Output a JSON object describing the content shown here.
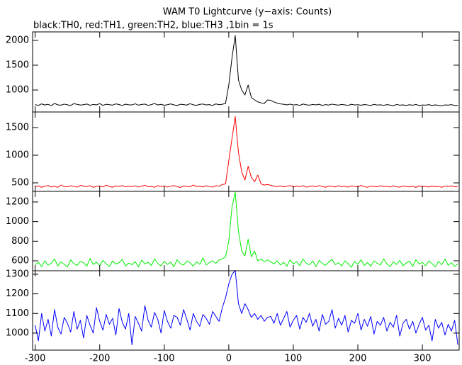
{
  "chart_data": [
    {
      "type": "line",
      "title": "WAM T0 Lightcurve (y−axis: Counts)",
      "subtitle": "black:TH0, red:TH1, green:TH2, blue:TH3 ,1bin = 1s",
      "color": "#000000",
      "xlim": [
        -304,
        357
      ],
      "ylim": [
        557,
        2171
      ],
      "yticks": [
        1000,
        1500,
        2000
      ],
      "x": [
        -300,
        -295,
        -290,
        -285,
        -280,
        -275,
        -270,
        -265,
        -260,
        -255,
        -250,
        -245,
        -240,
        -235,
        -230,
        -225,
        -220,
        -215,
        -210,
        -205,
        -200,
        -195,
        -190,
        -185,
        -180,
        -175,
        -170,
        -165,
        -160,
        -155,
        -150,
        -145,
        -140,
        -135,
        -130,
        -125,
        -120,
        -115,
        -110,
        -105,
        -100,
        -95,
        -90,
        -85,
        -80,
        -75,
        -70,
        -65,
        -60,
        -55,
        -50,
        -45,
        -40,
        -35,
        -30,
        -25,
        -20,
        -15,
        -10,
        -5,
        0,
        5,
        10,
        15,
        20,
        25,
        30,
        35,
        40,
        45,
        50,
        55,
        60,
        65,
        70,
        75,
        80,
        85,
        90,
        95,
        100,
        105,
        110,
        115,
        120,
        125,
        130,
        135,
        140,
        145,
        150,
        155,
        160,
        165,
        170,
        175,
        180,
        185,
        190,
        195,
        200,
        205,
        210,
        215,
        220,
        225,
        230,
        235,
        240,
        245,
        250,
        255,
        260,
        265,
        270,
        275,
        280,
        285,
        290,
        295,
        300,
        305,
        310,
        315,
        320,
        325,
        330,
        335,
        340,
        345,
        350,
        355
      ],
      "values": [
        705,
        690,
        720,
        698,
        712,
        685,
        730,
        700,
        695,
        715,
        702,
        688,
        725,
        710,
        697,
        704,
        718,
        692,
        708,
        700,
        726,
        690,
        712,
        703,
        695,
        720,
        707,
        688,
        714,
        701,
        699,
        722,
        694,
        709,
        716,
        690,
        705,
        728,
        698,
        711,
        693,
        704,
        719,
        700,
        687,
        713,
        706,
        696,
        724,
        701,
        691,
        710,
        717,
        699,
        705,
        688,
        720,
        703,
        712,
        730,
        1100,
        1650,
        2100,
        1200,
        1000,
        900,
        1100,
        850,
        800,
        760,
        740,
        730,
        800,
        790,
        760,
        735,
        720,
        712,
        700,
        715,
        698,
        705,
        690,
        718,
        702,
        695,
        708,
        700,
        712,
        689,
        706,
        697,
        715,
        703,
        694,
        709,
        700,
        690,
        712,
        698,
        704,
        693,
        707,
        699,
        688,
        711,
        696,
        702,
        690,
        705,
        697,
        684,
        708,
        695,
        700,
        689,
        703,
        692,
        710,
        686,
        698,
        694,
        705,
        688,
        700,
        691,
        683,
        699,
        694,
        706,
        687,
        690
      ]
    },
    {
      "type": "line",
      "color": "#ff0000",
      "xlim": [
        -304,
        357
      ],
      "ylim": [
        346,
        1782
      ],
      "yticks": [
        500,
        1000,
        1500
      ],
      "x": [
        -300,
        -295,
        -290,
        -285,
        -280,
        -275,
        -270,
        -265,
        -260,
        -255,
        -250,
        -245,
        -240,
        -235,
        -230,
        -225,
        -220,
        -215,
        -210,
        -205,
        -200,
        -195,
        -190,
        -185,
        -180,
        -175,
        -170,
        -165,
        -160,
        -155,
        -150,
        -145,
        -140,
        -135,
        -130,
        -125,
        -120,
        -115,
        -110,
        -105,
        -100,
        -95,
        -90,
        -85,
        -80,
        -75,
        -70,
        -65,
        -60,
        -55,
        -50,
        -45,
        -40,
        -35,
        -30,
        -25,
        -20,
        -15,
        -10,
        -5,
        0,
        5,
        10,
        15,
        20,
        25,
        30,
        35,
        40,
        45,
        50,
        55,
        60,
        65,
        70,
        75,
        80,
        85,
        90,
        95,
        100,
        105,
        110,
        115,
        120,
        125,
        130,
        135,
        140,
        145,
        150,
        155,
        160,
        165,
        170,
        175,
        180,
        185,
        190,
        195,
        200,
        205,
        210,
        215,
        220,
        225,
        230,
        235,
        240,
        245,
        250,
        255,
        260,
        265,
        270,
        275,
        280,
        285,
        290,
        295,
        300,
        305,
        310,
        315,
        320,
        325,
        330,
        335,
        340,
        345,
        350,
        355
      ],
      "values": [
        430,
        445,
        420,
        438,
        452,
        425,
        440,
        418,
        460,
        432,
        428,
        447,
        435,
        422,
        455,
        440,
        430,
        448,
        419,
        437,
        442,
        426,
        458,
        433,
        421,
        444,
        436,
        450,
        427,
        439,
        431,
        446,
        424,
        441,
        457,
        429,
        436,
        420,
        449,
        434,
        443,
        425,
        438,
        452,
        430,
        418,
        445,
        437,
        428,
        460,
        433,
        441,
        426,
        447,
        435,
        422,
        450,
        438,
        470,
        480,
        900,
        1300,
        1700,
        1050,
        700,
        550,
        800,
        600,
        520,
        640,
        480,
        460,
        470,
        455,
        440,
        432,
        445,
        428,
        438,
        450,
        425,
        441,
        433,
        447,
        422,
        436,
        444,
        429,
        451,
        434,
        420,
        442,
        437,
        426,
        448,
        431,
        439,
        423,
        446,
        435,
        428,
        452,
        433,
        419,
        441,
        436,
        427,
        449,
        432,
        438,
        424,
        445,
        430,
        421,
        443,
        434,
        426,
        440,
        418,
        447,
        431,
        437,
        425,
        444,
        429,
        435,
        420,
        441,
        432,
        446,
        428,
        436
      ]
    },
    {
      "type": "line",
      "color": "#00ee00",
      "xlim": [
        -304,
        357
      ],
      "ylim": [
        499,
        1308
      ],
      "yticks": [
        600,
        800,
        1000,
        1200
      ],
      "x": [
        -300,
        -295,
        -290,
        -285,
        -280,
        -275,
        -270,
        -265,
        -260,
        -255,
        -250,
        -245,
        -240,
        -235,
        -230,
        -225,
        -220,
        -215,
        -210,
        -205,
        -200,
        -195,
        -190,
        -185,
        -180,
        -175,
        -170,
        -165,
        -160,
        -155,
        -150,
        -145,
        -140,
        -135,
        -130,
        -125,
        -120,
        -115,
        -110,
        -105,
        -100,
        -95,
        -90,
        -85,
        -80,
        -75,
        -70,
        -65,
        -60,
        -55,
        -50,
        -45,
        -40,
        -35,
        -30,
        -25,
        -20,
        -15,
        -10,
        -5,
        0,
        5,
        10,
        15,
        20,
        25,
        30,
        35,
        40,
        45,
        50,
        55,
        60,
        65,
        70,
        75,
        80,
        85,
        90,
        95,
        100,
        105,
        110,
        115,
        120,
        125,
        130,
        135,
        140,
        145,
        150,
        155,
        160,
        165,
        170,
        175,
        180,
        185,
        190,
        195,
        200,
        205,
        210,
        215,
        220,
        225,
        230,
        235,
        240,
        245,
        250,
        255,
        260,
        265,
        270,
        275,
        280,
        285,
        290,
        295,
        300,
        305,
        310,
        315,
        320,
        325,
        330,
        335,
        340,
        345,
        350,
        355
      ],
      "values": [
        560,
        585,
        540,
        600,
        555,
        575,
        620,
        548,
        590,
        565,
        537,
        610,
        572,
        553,
        595,
        580,
        545,
        625,
        562,
        588,
        550,
        605,
        570,
        542,
        598,
        566,
        582,
        615,
        548,
        577,
        560,
        592,
        538,
        608,
        569,
        585,
        552,
        620,
        574,
        547,
        596,
        563,
        587,
        540,
        612,
        571,
        556,
        600,
        580,
        545,
        590,
        565,
        630,
        558,
        582,
        600,
        575,
        610,
        620,
        640,
        800,
        1150,
        1300,
        900,
        700,
        650,
        820,
        640,
        700,
        600,
        620,
        590,
        610,
        590,
        570,
        600,
        558,
        585,
        545,
        610,
        568,
        592,
        550,
        620,
        575,
        560,
        598,
        540,
        605,
        572,
        555,
        588,
        615,
        562,
        580,
        548,
        600,
        570,
        535,
        595,
        565,
        610,
        552,
        583,
        545,
        600,
        575,
        558,
        620,
        568,
        540,
        590,
        563,
        605,
        550,
        578,
        597,
        543,
        612,
        566,
        585,
        550,
        600,
        572,
        538,
        595,
        560,
        618,
        555,
        580,
        545,
        570
      ]
    },
    {
      "type": "line",
      "color": "#0000ff",
      "xlim": [
        -304,
        357
      ],
      "ylim": [
        913,
        1318
      ],
      "yticks": [
        1000,
        1100,
        1200,
        1300
      ],
      "xticks": [
        -300,
        -200,
        -100,
        0,
        100,
        200,
        300
      ],
      "x": [
        -300,
        -295,
        -290,
        -285,
        -280,
        -275,
        -270,
        -265,
        -260,
        -255,
        -250,
        -245,
        -240,
        -235,
        -230,
        -225,
        -220,
        -215,
        -210,
        -205,
        -200,
        -195,
        -190,
        -185,
        -180,
        -175,
        -170,
        -165,
        -160,
        -155,
        -150,
        -145,
        -140,
        -135,
        -130,
        -125,
        -120,
        -115,
        -110,
        -105,
        -100,
        -95,
        -90,
        -85,
        -80,
        -75,
        -70,
        -65,
        -60,
        -55,
        -50,
        -45,
        -40,
        -35,
        -30,
        -25,
        -20,
        -15,
        -10,
        -5,
        0,
        5,
        10,
        15,
        20,
        25,
        30,
        35,
        40,
        45,
        50,
        55,
        60,
        65,
        70,
        75,
        80,
        85,
        90,
        95,
        100,
        105,
        110,
        115,
        120,
        125,
        130,
        135,
        140,
        145,
        150,
        155,
        160,
        165,
        170,
        175,
        180,
        185,
        190,
        195,
        200,
        205,
        210,
        215,
        220,
        225,
        230,
        235,
        240,
        245,
        250,
        255,
        260,
        265,
        270,
        275,
        280,
        285,
        290,
        295,
        300,
        305,
        310,
        315,
        320,
        325,
        330,
        335,
        340,
        345,
        350,
        355
      ],
      "values": [
        1040,
        960,
        1100,
        1010,
        1070,
        985,
        1120,
        1030,
        995,
        1080,
        1050,
        1005,
        1110,
        1020,
        1065,
        975,
        1090,
        1040,
        1000,
        1130,
        1060,
        1015,
        1095,
        1045,
        1075,
        990,
        1125,
        1055,
        1020,
        1100,
        940,
        1085,
        1050,
        1010,
        1140,
        1065,
        1030,
        1105,
        1070,
        1000,
        1115,
        1060,
        1025,
        1090,
        1080,
        1040,
        1120,
        1070,
        1015,
        1100,
        1060,
        1035,
        1095,
        1075,
        1045,
        1110,
        1085,
        1060,
        1130,
        1180,
        1250,
        1300,
        1320,
        1150,
        1100,
        1150,
        1120,
        1080,
        1100,
        1070,
        1090,
        1060,
        1080,
        1085,
        1050,
        1100,
        1040,
        1075,
        1110,
        1030,
        1065,
        1090,
        1020,
        1080,
        1055,
        1100,
        1035,
        1070,
        1010,
        1095,
        1045,
        1060,
        1120,
        1025,
        1075,
        1040,
        1090,
        1005,
        1065,
        1050,
        1100,
        1015,
        1070,
        1035,
        1085,
        995,
        1060,
        1040,
        1080,
        1010,
        1055,
        1030,
        1090,
        985,
        1050,
        1070,
        1020,
        1060,
        1000,
        1045,
        1080,
        1015,
        1040,
        960,
        1070,
        1025,
        1055,
        990,
        1045,
        1010,
        1065,
        940
      ]
    }
  ]
}
